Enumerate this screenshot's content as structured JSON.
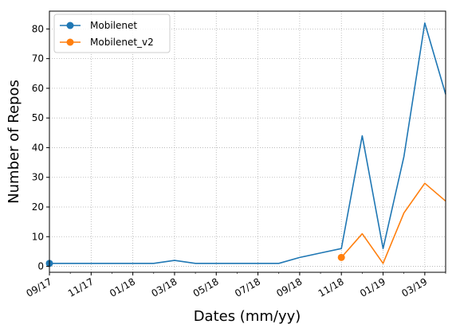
{
  "chart_data": {
    "type": "line",
    "title": "",
    "xlabel": "Dates (mm/yy)",
    "ylabel": "Number of Repos",
    "xlim": [
      "2017-09",
      "2019-04"
    ],
    "ylim": [
      -2,
      86
    ],
    "grid": true,
    "legend_position": "top-left",
    "x_ticks": [
      {
        "date": "2017-09",
        "label": "09/17"
      },
      {
        "date": "2017-11",
        "label": "11/17"
      },
      {
        "date": "2018-01",
        "label": "01/18"
      },
      {
        "date": "2018-03",
        "label": "03/18"
      },
      {
        "date": "2018-05",
        "label": "05/18"
      },
      {
        "date": "2018-07",
        "label": "07/18"
      },
      {
        "date": "2018-09",
        "label": "09/18"
      },
      {
        "date": "2018-11",
        "label": "11/18"
      },
      {
        "date": "2019-01",
        "label": "01/19"
      },
      {
        "date": "2019-03",
        "label": "03/19"
      }
    ],
    "y_ticks": [
      0,
      10,
      20,
      30,
      40,
      50,
      60,
      70,
      80
    ],
    "series": [
      {
        "name": "Mobilenet",
        "color": "#1f77b4",
        "points": [
          {
            "x": "2017-09",
            "y": 1
          },
          {
            "x": "2017-10",
            "y": 1
          },
          {
            "x": "2017-11",
            "y": 1
          },
          {
            "x": "2017-12",
            "y": 1
          },
          {
            "x": "2018-01",
            "y": 1
          },
          {
            "x": "2018-02",
            "y": 1
          },
          {
            "x": "2018-03",
            "y": 2
          },
          {
            "x": "2018-04",
            "y": 1
          },
          {
            "x": "2018-05",
            "y": 1
          },
          {
            "x": "2018-06",
            "y": 1
          },
          {
            "x": "2018-07",
            "y": 1
          },
          {
            "x": "2018-08",
            "y": 1
          },
          {
            "x": "2018-09",
            "y": 3
          },
          {
            "x": "2018-10",
            "y": 4.5
          },
          {
            "x": "2018-11",
            "y": 6
          },
          {
            "x": "2018-12",
            "y": 44
          },
          {
            "x": "2019-01",
            "y": 6
          },
          {
            "x": "2019-02",
            "y": 37
          },
          {
            "x": "2019-03",
            "y": 82
          },
          {
            "x": "2019-04",
            "y": 58
          }
        ]
      },
      {
        "name": "Mobilenet_v2",
        "color": "#ff7f0e",
        "points": [
          {
            "x": "2018-11",
            "y": 3
          },
          {
            "x": "2018-12",
            "y": 11
          },
          {
            "x": "2019-01",
            "y": 1
          },
          {
            "x": "2019-02",
            "y": 18
          },
          {
            "x": "2019-03",
            "y": 28
          },
          {
            "x": "2019-04",
            "y": 22
          }
        ]
      }
    ]
  }
}
